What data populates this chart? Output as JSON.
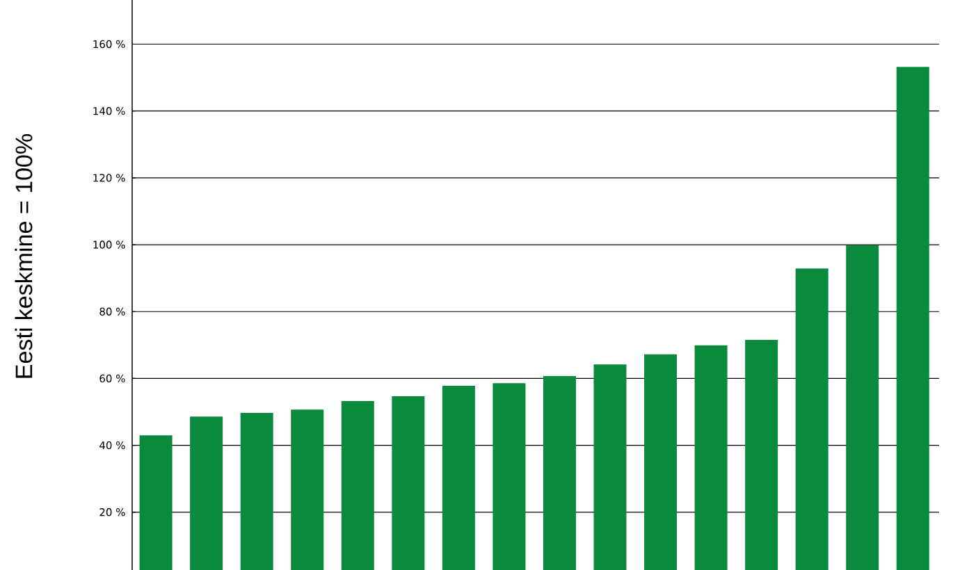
{
  "chart_data": {
    "type": "bar",
    "ylabel": "Eesti keskmine = 100%",
    "categories": [
      null,
      null,
      null,
      null,
      null,
      null,
      null,
      null,
      null,
      null,
      null,
      null,
      null,
      null,
      null,
      null
    ],
    "values": [
      43,
      48.6,
      49.7,
      50.7,
      53.2,
      54.7,
      57.8,
      58.6,
      60.7,
      64.2,
      67.2,
      69.9,
      71.5,
      92.9,
      99.8,
      153.2
    ],
    "color": "#0a8a3c",
    "ylim": [
      2.7,
      173.2
    ],
    "yticks": [
      {
        "value": 20,
        "label": "20 %"
      },
      {
        "value": 40,
        "label": "40 %"
      },
      {
        "value": 60,
        "label": "60 %"
      },
      {
        "value": 80,
        "label": "80 %"
      },
      {
        "value": 100,
        "label": "100 %"
      },
      {
        "value": 120,
        "label": "120 %"
      },
      {
        "value": 140,
        "label": "140 %"
      },
      {
        "value": 160,
        "label": "160 %"
      }
    ],
    "grid": "y"
  }
}
